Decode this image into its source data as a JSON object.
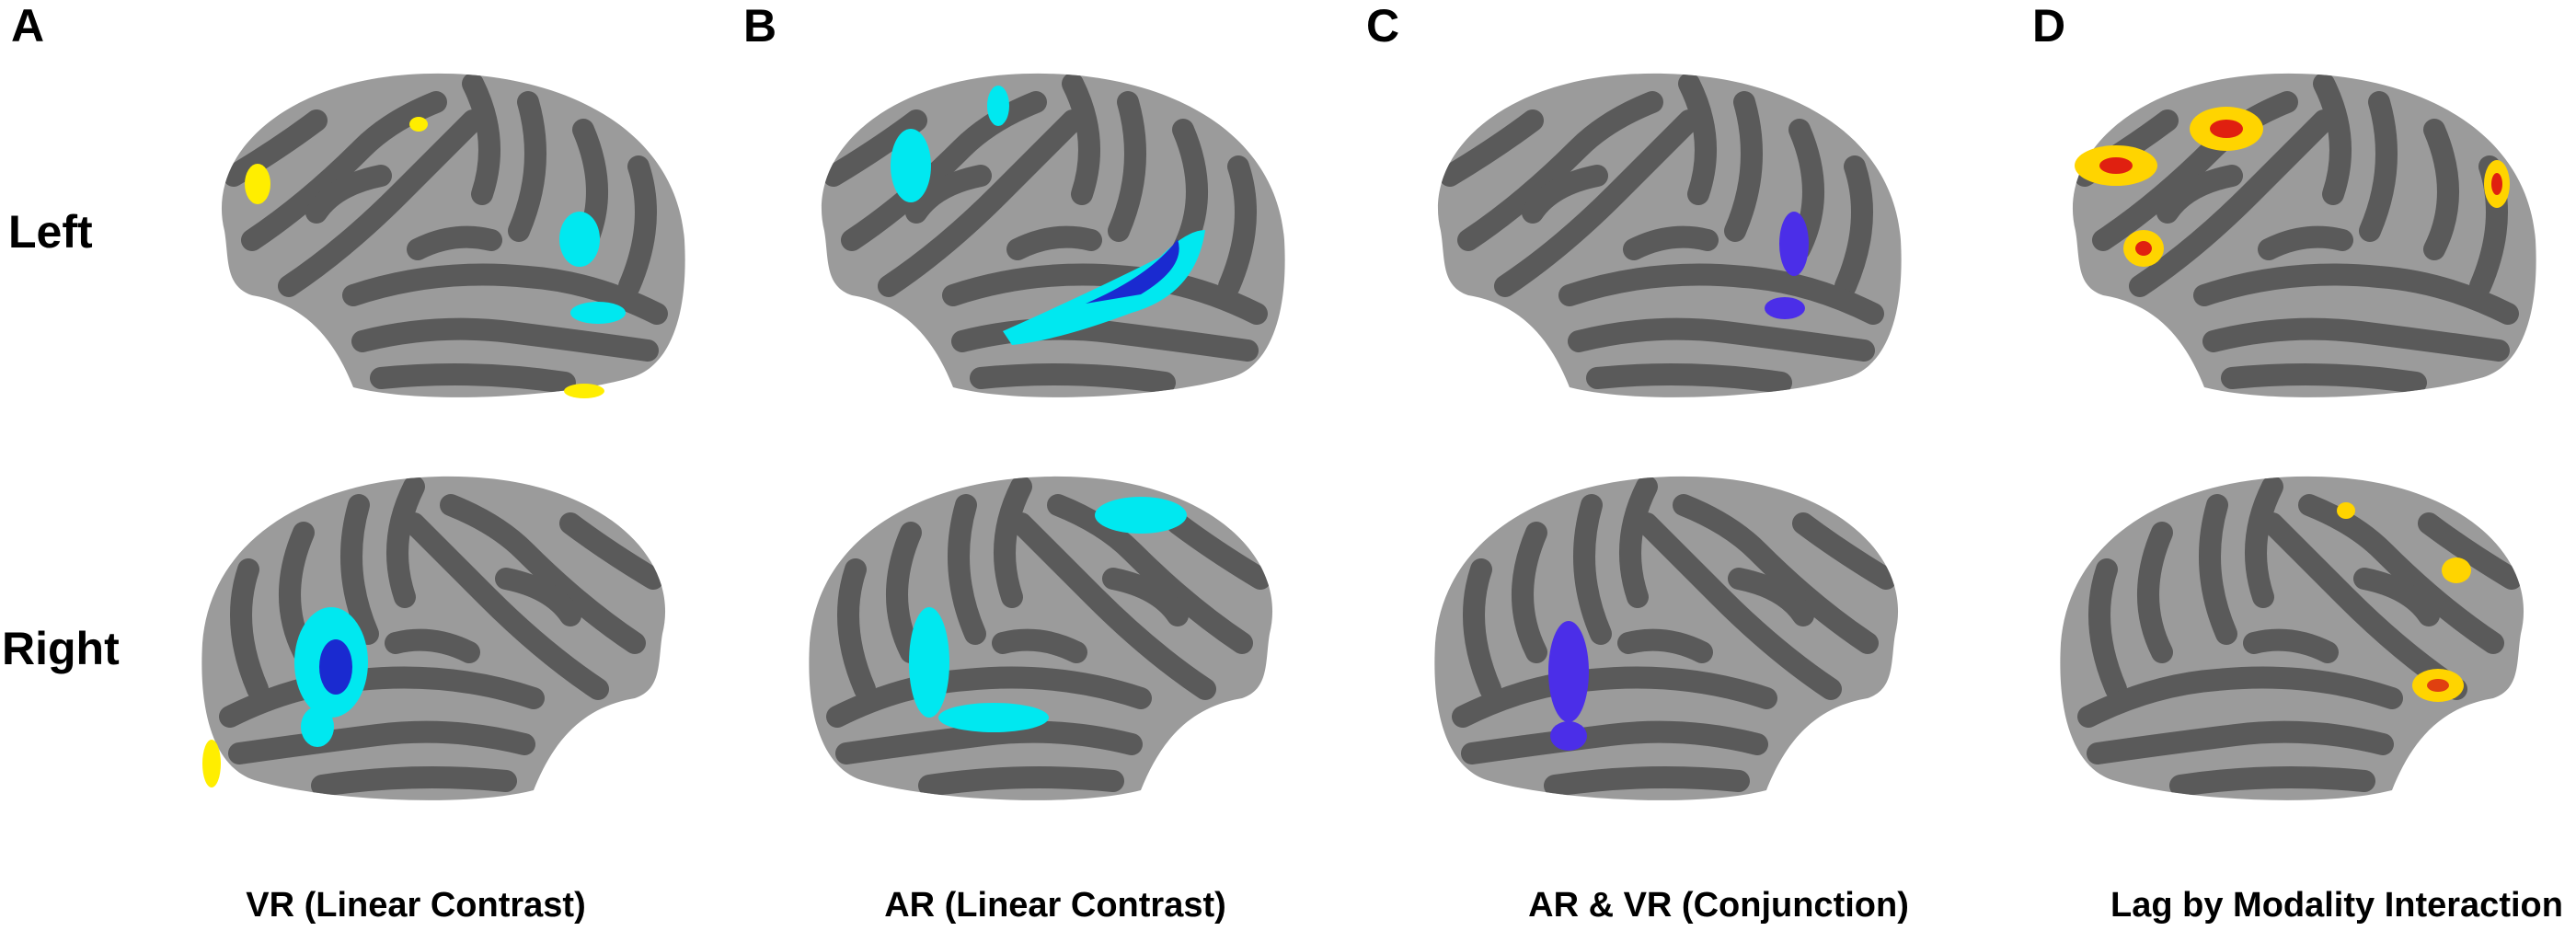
{
  "panels": [
    {
      "letter": "A",
      "caption": "VR (Linear Contrast)"
    },
    {
      "letter": "B",
      "caption": "AR (Linear Contrast)"
    },
    {
      "letter": "C",
      "caption": "AR & VR (Conjunction)"
    },
    {
      "letter": "D",
      "caption": "Lag by Modality Interaction"
    }
  ],
  "rows": [
    "Left",
    "Right"
  ]
}
